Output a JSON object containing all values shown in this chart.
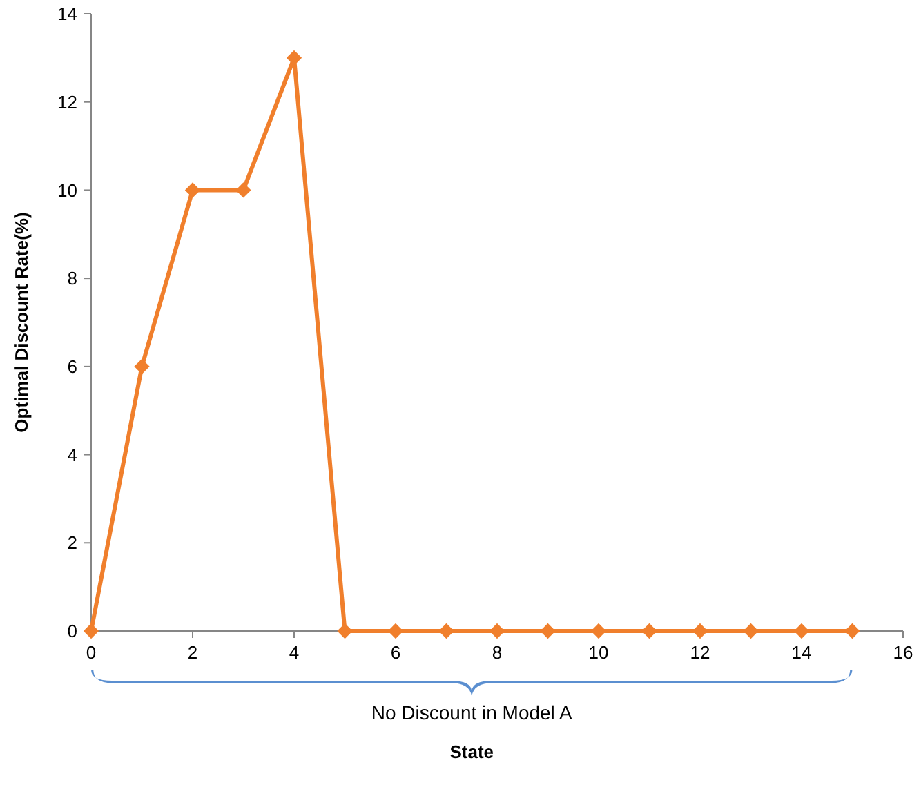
{
  "chart_data": {
    "type": "line",
    "xlabel": "State",
    "ylabel": "Optimal Discount Rate(%)",
    "x": [
      0,
      1,
      2,
      3,
      4,
      5,
      6,
      7,
      8,
      9,
      10,
      11,
      12,
      13,
      14,
      15
    ],
    "series": [
      {
        "color": "#f07f2c",
        "values": [
          0,
          6,
          10,
          10,
          13,
          0,
          0,
          0,
          0,
          0,
          0,
          0,
          0,
          0,
          0,
          0
        ]
      }
    ],
    "xlim": [
      0,
      16
    ],
    "xticks": [
      0,
      2,
      4,
      6,
      8,
      10,
      12,
      14,
      16
    ],
    "ylim": [
      0,
      14
    ],
    "yticks": [
      0,
      2,
      4,
      6,
      8,
      10,
      12,
      14
    ],
    "grid": false,
    "marker": "diamond",
    "line_style": "solid",
    "annotations": [
      "No Discount in Model A"
    ]
  }
}
